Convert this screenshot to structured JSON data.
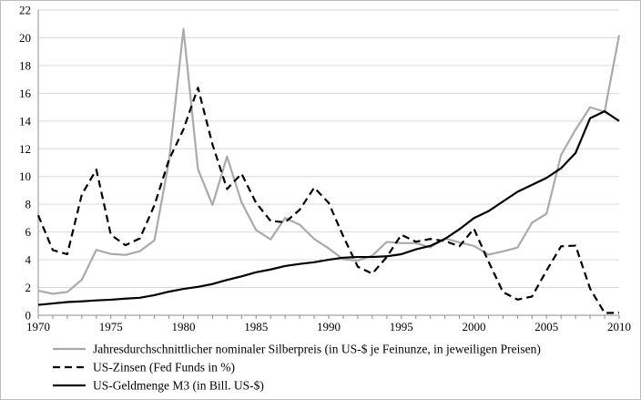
{
  "chart_data": {
    "type": "line",
    "title": "",
    "xlabel": "",
    "ylabel": "",
    "xlim": [
      1970,
      2010
    ],
    "ylim": [
      0,
      22
    ],
    "x_ticks": [
      "1970",
      "1975",
      "1980",
      "1985",
      "1990",
      "1995",
      "2000",
      "2005",
      "2010"
    ],
    "y_ticks": [
      "0",
      "2",
      "4",
      "6",
      "8",
      "10",
      "12",
      "14",
      "16",
      "18",
      "20",
      "22"
    ],
    "grid": true,
    "legend_position": "bottom",
    "x": [
      1970,
      1971,
      1972,
      1973,
      1974,
      1975,
      1976,
      1977,
      1978,
      1979,
      1980,
      1981,
      1982,
      1983,
      1984,
      1985,
      1986,
      1987,
      1988,
      1989,
      1990,
      1991,
      1992,
      1993,
      1994,
      1995,
      1996,
      1997,
      1998,
      1999,
      2000,
      2001,
      2002,
      2003,
      2004,
      2005,
      2006,
      2007,
      2008,
      2009,
      2010
    ],
    "series": [
      {
        "name": "Jahresdurchschnittlicher nominaler Silberpreis (in US-$ je Feinunze, in jeweiligen Preisen)",
        "color": "#aaaaaa",
        "style": "solid",
        "values": [
          1.77,
          1.55,
          1.68,
          2.56,
          4.71,
          4.42,
          4.35,
          4.62,
          5.4,
          11.09,
          20.63,
          10.52,
          7.95,
          11.44,
          8.14,
          6.14,
          5.47,
          7.01,
          6.53,
          5.5,
          4.82,
          4.04,
          3.94,
          4.3,
          5.29,
          5.2,
          5.2,
          4.9,
          5.54,
          5.25,
          5.0,
          4.37,
          4.6,
          4.88,
          6.67,
          7.32,
          11.55,
          13.38,
          14.99,
          14.67,
          20.19
        ]
      },
      {
        "name": "US-Zinsen (Fed Funds in %)",
        "color": "#000000",
        "style": "dashed",
        "values": [
          7.2,
          4.7,
          4.4,
          8.7,
          10.5,
          5.8,
          5.05,
          5.54,
          7.93,
          11.2,
          13.4,
          16.4,
          12.3,
          9.1,
          10.2,
          8.1,
          6.8,
          6.7,
          7.6,
          9.2,
          8.1,
          5.7,
          3.5,
          3.0,
          4.2,
          5.8,
          5.3,
          5.5,
          5.35,
          4.97,
          6.24,
          3.88,
          1.67,
          1.13,
          1.35,
          3.22,
          4.97,
          5.02,
          1.92,
          0.16,
          0.18
        ]
      },
      {
        "name": "US-Geldmenge M3 (in Bill. US-$)",
        "color": "#000000",
        "style": "solid",
        "values": [
          0.75,
          0.85,
          0.95,
          1.0,
          1.07,
          1.12,
          1.2,
          1.26,
          1.45,
          1.7,
          1.9,
          2.05,
          2.25,
          2.55,
          2.8,
          3.1,
          3.3,
          3.55,
          3.7,
          3.82,
          4.0,
          4.15,
          4.2,
          4.2,
          4.25,
          4.4,
          4.75,
          5.0,
          5.5,
          6.2,
          7.0,
          7.5,
          8.2,
          8.9,
          9.4,
          9.9,
          10.6,
          11.7,
          14.2,
          14.7,
          14.0
        ]
      }
    ]
  }
}
